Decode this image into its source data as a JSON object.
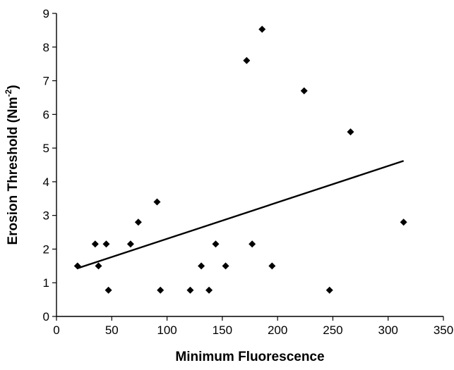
{
  "chart_data": {
    "type": "scatter",
    "xlabel": "Minimum Fluorescence",
    "ylabel": "Erosion Threshold (Nm-2)",
    "ylabel_parts": {
      "base": "Erosion Threshold (Nm",
      "sup": "-2",
      "end": ")"
    },
    "xlim": [
      0,
      350
    ],
    "ylim": [
      0,
      9
    ],
    "x_ticks": [
      0,
      50,
      100,
      150,
      200,
      250,
      300,
      350
    ],
    "y_ticks": [
      0,
      1,
      2,
      3,
      4,
      5,
      6,
      7,
      8,
      9
    ],
    "grid": false,
    "legend": "none",
    "marker": "diamond",
    "color": "#000000",
    "points": [
      {
        "x": 19,
        "y": 1.5
      },
      {
        "x": 35,
        "y": 2.15
      },
      {
        "x": 38,
        "y": 1.5
      },
      {
        "x": 45,
        "y": 2.15
      },
      {
        "x": 47,
        "y": 0.78
      },
      {
        "x": 67,
        "y": 2.15
      },
      {
        "x": 74,
        "y": 2.8
      },
      {
        "x": 91,
        "y": 3.4
      },
      {
        "x": 94,
        "y": 0.78
      },
      {
        "x": 121,
        "y": 0.78
      },
      {
        "x": 131,
        "y": 1.5
      },
      {
        "x": 138,
        "y": 0.78
      },
      {
        "x": 144,
        "y": 2.15
      },
      {
        "x": 153,
        "y": 1.5
      },
      {
        "x": 172,
        "y": 7.6
      },
      {
        "x": 177,
        "y": 2.15
      },
      {
        "x": 186,
        "y": 8.53
      },
      {
        "x": 195,
        "y": 1.5
      },
      {
        "x": 224,
        "y": 6.7
      },
      {
        "x": 247,
        "y": 0.78
      },
      {
        "x": 266,
        "y": 5.48
      },
      {
        "x": 314,
        "y": 2.8
      }
    ],
    "trendline": {
      "x": [
        19,
        314
      ],
      "y": [
        1.43,
        4.62
      ]
    }
  }
}
